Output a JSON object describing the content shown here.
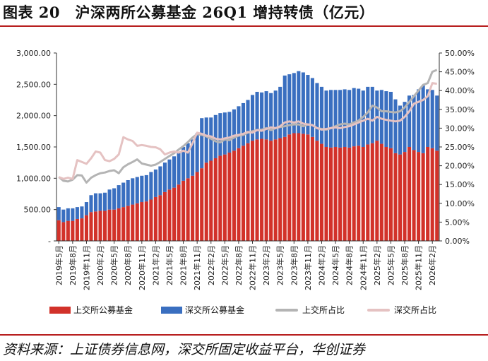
{
  "header": {
    "title": "图表 20　沪深两所公募基金 26Q1 增持转债（亿元）",
    "source": "资料来源：上证债券信息网，深交所固定收益平台，华创证券"
  },
  "legend": {
    "sh_bar": "上交所公募基金",
    "sz_bar": "深交所公募基金",
    "sh_line": "上交所占比",
    "sz_line": "深交所占比"
  },
  "colors": {
    "sh_bar": "#d2322a",
    "sz_bar": "#3a6fc0",
    "sh_line": "#b4b4b4",
    "sz_line": "#e5c2c2",
    "accent": "#b71c1c"
  },
  "chart_data": {
    "type": "bar",
    "stacked": true,
    "ylim": [
      0,
      3000
    ],
    "y2lim": [
      0,
      0.5
    ],
    "y_ticks": [
      "-",
      "500.00",
      "1,000.00",
      "1,500.00",
      "2,000.00",
      "2,500.00",
      "3,000.00"
    ],
    "y2_ticks": [
      "0.00%",
      "5.00%",
      "10.00%",
      "15.00%",
      "20.00%",
      "25.00%",
      "30.00%",
      "35.00%",
      "40.00%",
      "45.00%",
      "50.00%"
    ],
    "x_tick_labels": [
      "2019年5月",
      "2019年8月",
      "2019年11月",
      "2020年2月",
      "2020年5月",
      "2020年8月",
      "2020年11月",
      "2021年2月",
      "2021年5月",
      "2021年8月",
      "2021年11月",
      "2022年2月",
      "2022年5月",
      "2022年8月",
      "2022年11月",
      "2023年2月",
      "2023年5月",
      "2023年8月",
      "2023年11月",
      "2024年2月",
      "2024年5月",
      "2024年8月",
      "2024年11月",
      "2025年2月",
      "2025年5月",
      "2025年8月",
      "2025年11月",
      "2026年2月"
    ],
    "grid": false,
    "legend_position": "bottom",
    "categories": [
      "2019-05",
      "2019-06",
      "2019-07",
      "2019-08",
      "2019-09",
      "2019-10",
      "2019-11",
      "2019-12",
      "2020-01",
      "2020-02",
      "2020-03",
      "2020-04",
      "2020-05",
      "2020-06",
      "2020-07",
      "2020-08",
      "2020-09",
      "2020-10",
      "2020-11",
      "2020-12",
      "2021-01",
      "2021-02",
      "2021-03",
      "2021-04",
      "2021-05",
      "2021-06",
      "2021-07",
      "2021-08",
      "2021-09",
      "2021-10",
      "2021-11",
      "2021-12",
      "2022-01",
      "2022-02",
      "2022-03",
      "2022-04",
      "2022-05",
      "2022-06",
      "2022-07",
      "2022-08",
      "2022-09",
      "2022-10",
      "2022-11",
      "2022-12",
      "2023-01",
      "2023-02",
      "2023-03",
      "2023-04",
      "2023-05",
      "2023-06",
      "2023-07",
      "2023-08",
      "2023-09",
      "2023-10",
      "2023-11",
      "2023-12",
      "2024-01",
      "2024-02",
      "2024-03",
      "2024-04",
      "2024-05",
      "2024-06",
      "2024-07",
      "2024-08",
      "2024-09",
      "2024-10",
      "2024-11",
      "2024-12",
      "2025-01",
      "2025-02",
      "2025-03",
      "2025-04",
      "2025-05",
      "2025-06",
      "2025-07",
      "2025-08",
      "2025-09",
      "2025-10",
      "2025-11",
      "2025-12",
      "2026-01",
      "2026-02",
      "2026-03"
    ],
    "series": [
      {
        "name": "上交所公募基金",
        "kind": "bar",
        "values": [
          330,
          300,
          320,
          320,
          350,
          360,
          410,
          460,
          470,
          480,
          480,
          500,
          500,
          520,
          540,
          560,
          580,
          600,
          620,
          630,
          660,
          700,
          730,
          780,
          820,
          850,
          900,
          960,
          1000,
          1040,
          1100,
          1160,
          1250,
          1280,
          1320,
          1360,
          1380,
          1410,
          1440,
          1480,
          1520,
          1560,
          1600,
          1620,
          1630,
          1620,
          1600,
          1620,
          1640,
          1660,
          1700,
          1720,
          1720,
          1710,
          1700,
          1660,
          1600,
          1550,
          1500,
          1490,
          1500,
          1490,
          1500,
          1490,
          1510,
          1520,
          1500,
          1540,
          1560,
          1600,
          1550,
          1500,
          1480,
          1400,
          1380,
          1420,
          1500,
          1450,
          1420,
          1400,
          1500,
          1480,
          1440
        ]
      },
      {
        "name": "深交所公募基金",
        "kind": "bar",
        "values": [
          210,
          200,
          200,
          200,
          190,
          190,
          210,
          270,
          290,
          280,
          290,
          320,
          340,
          370,
          390,
          410,
          420,
          420,
          420,
          420,
          440,
          440,
          460,
          470,
          480,
          500,
          520,
          540,
          560,
          580,
          620,
          800,
          720,
          690,
          690,
          680,
          670,
          650,
          660,
          670,
          680,
          690,
          730,
          760,
          740,
          770,
          760,
          780,
          820,
          980,
          960,
          960,
          990,
          980,
          950,
          940,
          920,
          910,
          900,
          920,
          910,
          920,
          920,
          920,
          930,
          910,
          900,
          920,
          900,
          800,
          860,
          890,
          900,
          860,
          780,
          800,
          820,
          880,
          1000,
          1080,
          920,
          930,
          880
        ]
      },
      {
        "name": "上交所占比",
        "kind": "line",
        "axis": "right",
        "values": [
          0.17,
          0.16,
          0.158,
          0.163,
          0.175,
          0.174,
          0.155,
          0.168,
          0.175,
          0.18,
          0.182,
          0.186,
          0.188,
          0.18,
          0.196,
          0.204,
          0.21,
          0.217,
          0.206,
          0.203,
          0.2,
          0.203,
          0.21,
          0.218,
          0.226,
          0.233,
          0.243,
          0.252,
          0.263,
          0.275,
          0.284,
          0.282,
          0.278,
          0.272,
          0.265,
          0.262,
          0.27,
          0.268,
          0.275,
          0.28,
          0.282,
          0.288,
          0.292,
          0.295,
          0.296,
          0.3,
          0.295,
          0.3,
          0.303,
          0.305,
          0.308,
          0.31,
          0.31,
          0.305,
          0.31,
          0.308,
          0.3,
          0.298,
          0.296,
          0.3,
          0.305,
          0.31,
          0.312,
          0.31,
          0.315,
          0.32,
          0.33,
          0.342,
          0.36,
          0.355,
          0.345,
          0.345,
          0.343,
          0.342,
          0.345,
          0.355,
          0.37,
          0.385,
          0.4,
          0.415,
          0.42,
          0.45,
          0.455
        ]
      },
      {
        "name": "深交所占比",
        "kind": "line",
        "axis": "right",
        "values": [
          0.17,
          0.165,
          0.168,
          0.165,
          0.215,
          0.21,
          0.205,
          0.22,
          0.238,
          0.235,
          0.215,
          0.212,
          0.218,
          0.23,
          0.276,
          0.27,
          0.266,
          0.253,
          0.255,
          0.253,
          0.25,
          0.249,
          0.244,
          0.23,
          0.235,
          0.238,
          0.235,
          0.24,
          0.235,
          0.26,
          0.288,
          0.285,
          0.28,
          0.278,
          0.272,
          0.27,
          0.273,
          0.275,
          0.28,
          0.282,
          0.285,
          0.29,
          0.288,
          0.295,
          0.293,
          0.298,
          0.302,
          0.3,
          0.305,
          0.315,
          0.318,
          0.315,
          0.318,
          0.312,
          0.31,
          0.308,
          0.3,
          0.296,
          0.298,
          0.3,
          0.302,
          0.3,
          0.303,
          0.305,
          0.31,
          0.315,
          0.32,
          0.325,
          0.32,
          0.33,
          0.325,
          0.322,
          0.32,
          0.318,
          0.32,
          0.33,
          0.345,
          0.365,
          0.37,
          0.375,
          0.385,
          0.42,
          0.418
        ]
      }
    ]
  }
}
